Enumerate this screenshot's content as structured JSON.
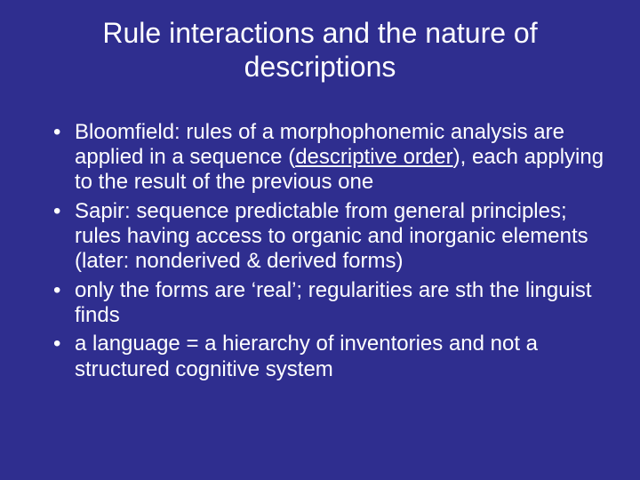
{
  "slide": {
    "background_color": "#2f2e8f",
    "text_color": "#ffffff",
    "font_family": "Arial",
    "title": {
      "text": "Rule interactions and the nature of descriptions",
      "fontsize": 32,
      "align": "center"
    },
    "bullets": {
      "fontsize": 24,
      "items": [
        {
          "pre": "Bloomfield: rules of a morphophonemic analysis are applied in a sequence (",
          "underlined": "descriptive order",
          "post": "), each applying to the result of the previous one"
        },
        {
          "pre": "Sapir: sequence predictable from general principles; rules having access to organic and inorganic elements (later: nonderived & derived forms)",
          "underlined": "",
          "post": ""
        },
        {
          "pre": "only the forms are ‘real’; regularities are sth the linguist finds",
          "underlined": "",
          "post": ""
        },
        {
          "pre": "a language = a hierarchy of inventories and not a structured cognitive system",
          "underlined": "",
          "post": ""
        }
      ]
    }
  }
}
